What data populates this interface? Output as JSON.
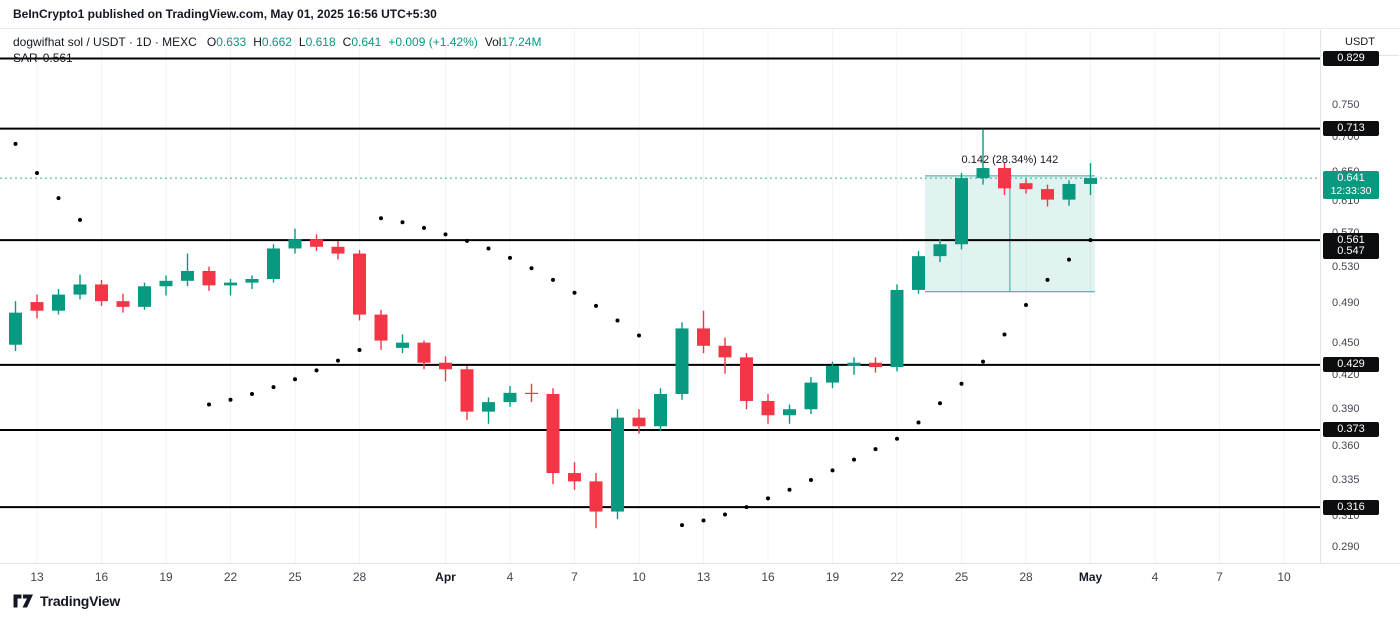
{
  "header": {
    "attribution": "BeInCrypto1 published on TradingView.com, May 01, 2025 16:56 UTC+5:30"
  },
  "legend": {
    "symbol": "dogwifhat sol / USDT · 1D · MEXC",
    "open_label": "O",
    "open_value": "0.633",
    "high_label": "H",
    "high_value": "0.662",
    "low_label": "L",
    "low_value": "0.618",
    "close_label": "C",
    "close_value": "0.641",
    "change_value": "+0.009 (+1.42%)",
    "volume_label": "Vol",
    "volume_value": "17.24M",
    "indicator_label": "SAR",
    "indicator_value": "0.561"
  },
  "price_axis": {
    "currency_label": "USDT",
    "ticks": [
      0.75,
      0.7,
      0.65,
      0.61,
      0.57,
      0.53,
      0.49,
      0.45,
      0.42,
      0.39,
      0.36,
      0.335,
      0.31,
      0.29
    ],
    "badges": [
      {
        "value": 0.829,
        "style": "black"
      },
      {
        "value": 0.713,
        "style": "black"
      },
      {
        "value": 0.641,
        "style": "green",
        "countdown": "12:33:30"
      },
      {
        "value": 0.561,
        "style": "black"
      },
      {
        "value": 0.547,
        "style": "black"
      },
      {
        "value": 0.429,
        "style": "black"
      },
      {
        "value": 0.373,
        "style": "black"
      },
      {
        "value": 0.316,
        "style": "black"
      }
    ]
  },
  "time_axis": {
    "ticks": [
      {
        "label": "13",
        "index": 1
      },
      {
        "label": "16",
        "index": 4
      },
      {
        "label": "19",
        "index": 7
      },
      {
        "label": "22",
        "index": 10
      },
      {
        "label": "25",
        "index": 13
      },
      {
        "label": "28",
        "index": 16
      },
      {
        "label": "Apr",
        "index": 20,
        "bold": true
      },
      {
        "label": "4",
        "index": 23
      },
      {
        "label": "7",
        "index": 26
      },
      {
        "label": "10",
        "index": 29
      },
      {
        "label": "13",
        "index": 32
      },
      {
        "label": "16",
        "index": 35
      },
      {
        "label": "19",
        "index": 38
      },
      {
        "label": "22",
        "index": 41
      },
      {
        "label": "25",
        "index": 44
      },
      {
        "label": "28",
        "index": 47
      },
      {
        "label": "May",
        "index": 50,
        "bold": true
      },
      {
        "label": "4",
        "index": 53
      },
      {
        "label": "7",
        "index": 56
      },
      {
        "label": "10",
        "index": 59
      }
    ]
  },
  "footer": {
    "brand": "TradingView"
  },
  "colors": {
    "up": "#089981",
    "down": "#f23645",
    "sar": "#000000",
    "level_line": "#000000",
    "last_price": "#089981",
    "badge_black": "#0c0d0e",
    "badge_green": "#089981",
    "measure_fill": "rgba(8,153,129,0.12)",
    "measure_line": "#33a69a",
    "text": "#131722",
    "muted": "#434651"
  },
  "chart_data": {
    "type": "candlestick",
    "title": "dogwifhat sol / USDT · 1D · MEXC",
    "y_scale": "log",
    "x_unit": "1 day",
    "ylim": [
      0.278,
      0.86
    ],
    "last_price": 0.641,
    "levels": [
      0.829,
      0.713,
      0.561,
      0.429,
      0.373,
      0.316
    ],
    "measurement": {
      "label": "0.142 (28.34%) 142",
      "from_index": 42.3,
      "to_index": 50.2,
      "from_price": 0.502,
      "to_price": 0.644
    },
    "candles": [
      [
        "Mar 12",
        0.448,
        0.492,
        0.442,
        0.48
      ],
      [
        "Mar 13",
        0.491,
        0.499,
        0.474,
        0.482
      ],
      [
        "Mar 14",
        0.482,
        0.505,
        0.478,
        0.499
      ],
      [
        "Mar 15",
        0.499,
        0.521,
        0.494,
        0.51
      ],
      [
        "Mar 16",
        0.51,
        0.515,
        0.487,
        0.492
      ],
      [
        "Mar 17",
        0.492,
        0.5,
        0.48,
        0.486
      ],
      [
        "Mar 18",
        0.486,
        0.512,
        0.483,
        0.508
      ],
      [
        "Mar 19",
        0.508,
        0.52,
        0.498,
        0.514
      ],
      [
        "Mar 20",
        0.514,
        0.545,
        0.508,
        0.525
      ],
      [
        "Mar 21",
        0.525,
        0.53,
        0.503,
        0.509
      ],
      [
        "Mar 22",
        0.509,
        0.516,
        0.498,
        0.512
      ],
      [
        "Mar 23",
        0.512,
        0.52,
        0.505,
        0.516
      ],
      [
        "Mar 24",
        0.516,
        0.556,
        0.512,
        0.551
      ],
      [
        "Mar 25",
        0.551,
        0.575,
        0.545,
        0.562
      ],
      [
        "Mar 26",
        0.562,
        0.568,
        0.548,
        0.553
      ],
      [
        "Mar 27",
        0.553,
        0.56,
        0.538,
        0.545
      ],
      [
        "Mar 28",
        0.545,
        0.549,
        0.472,
        0.478
      ],
      [
        "Mar 29",
        0.478,
        0.483,
        0.443,
        0.452
      ],
      [
        "Mar 30",
        0.445,
        0.458,
        0.44,
        0.45
      ],
      [
        "Mar 31",
        0.45,
        0.452,
        0.425,
        0.431
      ],
      [
        "Apr 1",
        0.431,
        0.437,
        0.414,
        0.425
      ],
      [
        "Apr 2",
        0.425,
        0.428,
        0.381,
        0.388
      ],
      [
        "Apr 3",
        0.388,
        0.4,
        0.378,
        0.396
      ],
      [
        "Apr 4",
        0.396,
        0.41,
        0.392,
        0.404
      ],
      [
        "Apr 5",
        0.404,
        0.412,
        0.396,
        0.403
      ],
      [
        "Apr 6",
        0.403,
        0.408,
        0.332,
        0.34
      ],
      [
        "Apr 7",
        0.34,
        0.348,
        0.328,
        0.334
      ],
      [
        "Apr 8",
        0.334,
        0.34,
        0.302,
        0.313
      ],
      [
        "Apr 9",
        0.313,
        0.39,
        0.308,
        0.383
      ],
      [
        "Apr 10",
        0.383,
        0.39,
        0.37,
        0.376
      ],
      [
        "Apr 11",
        0.376,
        0.408,
        0.372,
        0.403
      ],
      [
        "Apr 12",
        0.403,
        0.47,
        0.398,
        0.464
      ],
      [
        "Apr 13",
        0.464,
        0.482,
        0.44,
        0.447
      ],
      [
        "Apr 14",
        0.447,
        0.455,
        0.421,
        0.436
      ],
      [
        "Apr 15",
        0.436,
        0.44,
        0.39,
        0.397
      ],
      [
        "Apr 16",
        0.397,
        0.403,
        0.378,
        0.385
      ],
      [
        "Apr 17",
        0.385,
        0.394,
        0.378,
        0.39
      ],
      [
        "Apr 18",
        0.39,
        0.418,
        0.386,
        0.413
      ],
      [
        "Apr 19",
        0.413,
        0.432,
        0.408,
        0.428
      ],
      [
        "Apr 20",
        0.428,
        0.436,
        0.42,
        0.431
      ],
      [
        "Apr 21",
        0.431,
        0.436,
        0.422,
        0.427
      ],
      [
        "Apr 22",
        0.427,
        0.51,
        0.423,
        0.504
      ],
      [
        "Apr 23",
        0.504,
        0.548,
        0.5,
        0.542
      ],
      [
        "Apr 24",
        0.542,
        0.562,
        0.535,
        0.556
      ],
      [
        "Apr 25",
        0.556,
        0.648,
        0.55,
        0.641
      ],
      [
        "Apr 26",
        0.641,
        0.712,
        0.632,
        0.655
      ],
      [
        "Apr 27",
        0.655,
        0.663,
        0.618,
        0.627
      ],
      [
        "Apr 28",
        0.634,
        0.64,
        0.62,
        0.626
      ],
      [
        "Apr 29",
        0.626,
        0.632,
        0.603,
        0.612
      ],
      [
        "Apr 30",
        0.612,
        0.638,
        0.604,
        0.633
      ],
      [
        "May 1",
        0.633,
        0.662,
        0.618,
        0.641
      ]
    ],
    "sar": [
      [
        0,
        0.69
      ],
      [
        1,
        0.648
      ],
      [
        2,
        0.614
      ],
      [
        3,
        0.586
      ],
      [
        9,
        0.394
      ],
      [
        10,
        0.398
      ],
      [
        11,
        0.403
      ],
      [
        12,
        0.409
      ],
      [
        13,
        0.416
      ],
      [
        14,
        0.424
      ],
      [
        15,
        0.433
      ],
      [
        16,
        0.443
      ],
      [
        17,
        0.588
      ],
      [
        18,
        0.583
      ],
      [
        19,
        0.576
      ],
      [
        20,
        0.568
      ],
      [
        21,
        0.56
      ],
      [
        22,
        0.551
      ],
      [
        23,
        0.54
      ],
      [
        24,
        0.528
      ],
      [
        25,
        0.515
      ],
      [
        26,
        0.501
      ],
      [
        27,
        0.487
      ],
      [
        28,
        0.472
      ],
      [
        29,
        0.457
      ],
      [
        31,
        0.304
      ],
      [
        32,
        0.307
      ],
      [
        33,
        0.311
      ],
      [
        34,
        0.316
      ],
      [
        35,
        0.322
      ],
      [
        36,
        0.328
      ],
      [
        37,
        0.335
      ],
      [
        38,
        0.342
      ],
      [
        39,
        0.35
      ],
      [
        40,
        0.358
      ],
      [
        41,
        0.366
      ],
      [
        42,
        0.379
      ],
      [
        43,
        0.395
      ],
      [
        44,
        0.412
      ],
      [
        45,
        0.432
      ],
      [
        46,
        0.458
      ],
      [
        47,
        0.488
      ],
      [
        48,
        0.515
      ],
      [
        49,
        0.538
      ],
      [
        50,
        0.561
      ]
    ]
  }
}
